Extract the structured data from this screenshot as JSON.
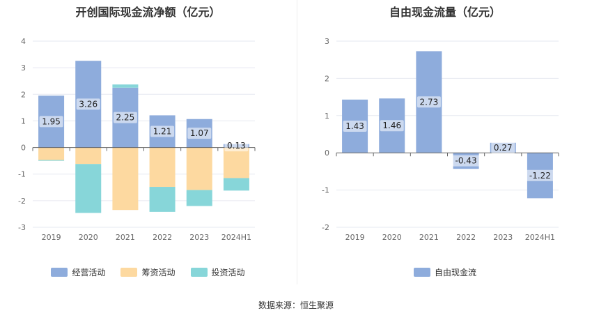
{
  "source_label": "数据来源：恒生聚源",
  "chart_data": [
    {
      "type": "bar",
      "stacked": true,
      "title": "开创国际现金流净额（亿元）",
      "categories": [
        "2019",
        "2020",
        "2021",
        "2022",
        "2023",
        "2024H1"
      ],
      "ylim": [
        -3,
        4
      ],
      "yticks": [
        -3,
        -2,
        -1,
        0,
        1,
        2,
        3,
        4
      ],
      "grid": true,
      "legend_position": "bottom",
      "series": [
        {
          "name": "经营活动",
          "color": "#8eacdc",
          "values": [
            1.95,
            3.26,
            2.25,
            1.21,
            1.07,
            0.13
          ],
          "labels": [
            "1.95",
            "3.26",
            "2.25",
            "1.21",
            "1.07",
            "0.13"
          ]
        },
        {
          "name": "筹资活动",
          "color": "#fdd9a0",
          "values": [
            -0.47,
            -0.62,
            -2.35,
            -1.48,
            -1.6,
            -1.15
          ],
          "labels": []
        },
        {
          "name": "投资活动",
          "color": "#87d6d9",
          "values": [
            -0.03,
            -1.84,
            0.12,
            -0.94,
            -0.6,
            -0.47
          ],
          "labels": []
        }
      ]
    },
    {
      "type": "bar",
      "title": "自由现金流量（亿元）",
      "categories": [
        "2019",
        "2020",
        "2021",
        "2022",
        "2023",
        "2024H1"
      ],
      "ylim": [
        -2,
        3
      ],
      "yticks": [
        -2,
        -1,
        0,
        1,
        2,
        3
      ],
      "grid": true,
      "legend_position": "bottom",
      "series": [
        {
          "name": "自由现金流",
          "color": "#8eacdc",
          "values": [
            1.43,
            1.46,
            2.73,
            -0.43,
            0.27,
            -1.22
          ],
          "labels": [
            "1.43",
            "1.46",
            "2.73",
            "-0.43",
            "0.27",
            "-1.22"
          ]
        }
      ]
    }
  ]
}
